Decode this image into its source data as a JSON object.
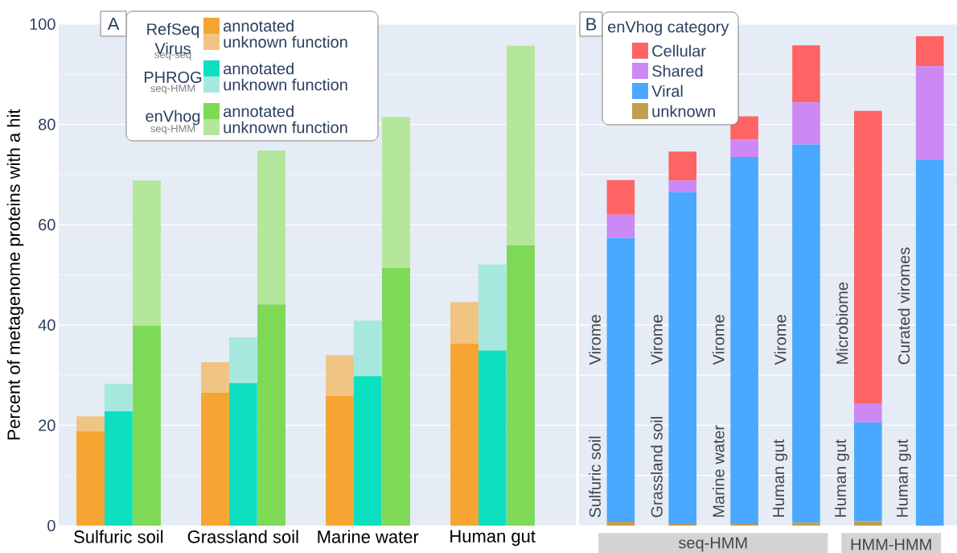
{
  "chart_data": [
    {
      "type": "bar",
      "title": "A",
      "stacked": true,
      "legend": "top left",
      "legend_title": "RefSeq Virus",
      "tick_labels": false,
      "categories": [
        null,
        null,
        null,
        null
      ],
      "ylim": [
        0,
        100
      ],
      "yticks": [
        0,
        20,
        40,
        60,
        80,
        100
      ],
      "annotations": [
        "seq-seq"
      ],
      "series": [
        {
          "name": "annotated",
          "color": "#f7a532",
          "values": [
            18.8,
            26.5,
            25.9,
            36.3
          ]
        },
        {
          "name": "unknown function",
          "color": "#f0c483",
          "values": [
            3.0,
            6.1,
            8.1,
            8.3
          ]
        }
      ]
    },
    {
      "type": "bar",
      "ylabel": "Percent of metagenome proteins with a hit",
      "stacked": true,
      "grid": true,
      "legend": "top left",
      "legend_title": "PHROG",
      "categories": [
        "Sulfuric soil",
        "Grassland soil",
        "Marine water",
        "Human gut"
      ],
      "ylim": [
        0,
        100
      ],
      "yticks": [
        0,
        20,
        40,
        60,
        80,
        100
      ],
      "annotations": [
        "seq-HMM"
      ],
      "series": [
        {
          "name": "annotated",
          "color": "#0ce0c0",
          "values": [
            22.8,
            28.4,
            29.8,
            34.9
          ]
        },
        {
          "name": "unknown function",
          "color": "#a6e8de",
          "values": [
            5.5,
            9.1,
            11.1,
            17.2
          ]
        }
      ]
    },
    {
      "type": "bar",
      "stacked": true,
      "legend": "top left",
      "legend_title": "enVhog",
      "tick_labels": false,
      "categories": [
        null,
        null,
        null,
        null
      ],
      "ylim": [
        0,
        100
      ],
      "yticks": [
        0,
        20,
        40,
        60,
        80,
        100
      ],
      "annotations": [
        "seq-HMM"
      ],
      "series": [
        {
          "name": "annotated",
          "color": "#7ed957",
          "values": [
            39.9,
            44.1,
            51.4,
            55.9
          ]
        },
        {
          "name": "unknown function",
          "color": "#b4e69b",
          "values": [
            28.9,
            30.7,
            30.1,
            39.8
          ]
        }
      ]
    },
    {
      "type": "bar",
      "title": "B",
      "legend_title": "enVhog category",
      "stacked": true,
      "grid": true,
      "legend": "top left",
      "tick_labels": "x",
      "categories": [
        "Sulfuric soil",
        "Grassland soil",
        "Marine water",
        "Human gut",
        "Human gut",
        "Human gut"
      ],
      "ylim": [
        0,
        100
      ],
      "yticks": [
        0,
        10,
        20,
        30,
        40,
        50,
        60,
        70,
        80,
        90,
        100
      ],
      "annotations": [
        "Virome",
        "Virome",
        "Virome",
        "Virome",
        "Microbiome",
        "Curated viromes",
        "seq-HMM",
        "HMM-HMM"
      ],
      "series": [
        {
          "name": "unknown",
          "color": "#c29f50",
          "values": [
            0.8,
            0.3,
            0.3,
            0.6,
            0.9,
            0
          ]
        },
        {
          "name": "Viral",
          "color": "#4aa8fe",
          "values": [
            56.6,
            66.2,
            73.2,
            75.4,
            19.7,
            73.0
          ]
        },
        {
          "name": "Shared",
          "color": "#cc88f5",
          "values": [
            4.6,
            2.3,
            3.5,
            8.4,
            3.8,
            18.6
          ]
        },
        {
          "name": "Cellular",
          "color": "#fe6464",
          "values": [
            6.9,
            5.8,
            4.6,
            11.4,
            58.3,
            6.0
          ]
        }
      ]
    }
  ]
}
